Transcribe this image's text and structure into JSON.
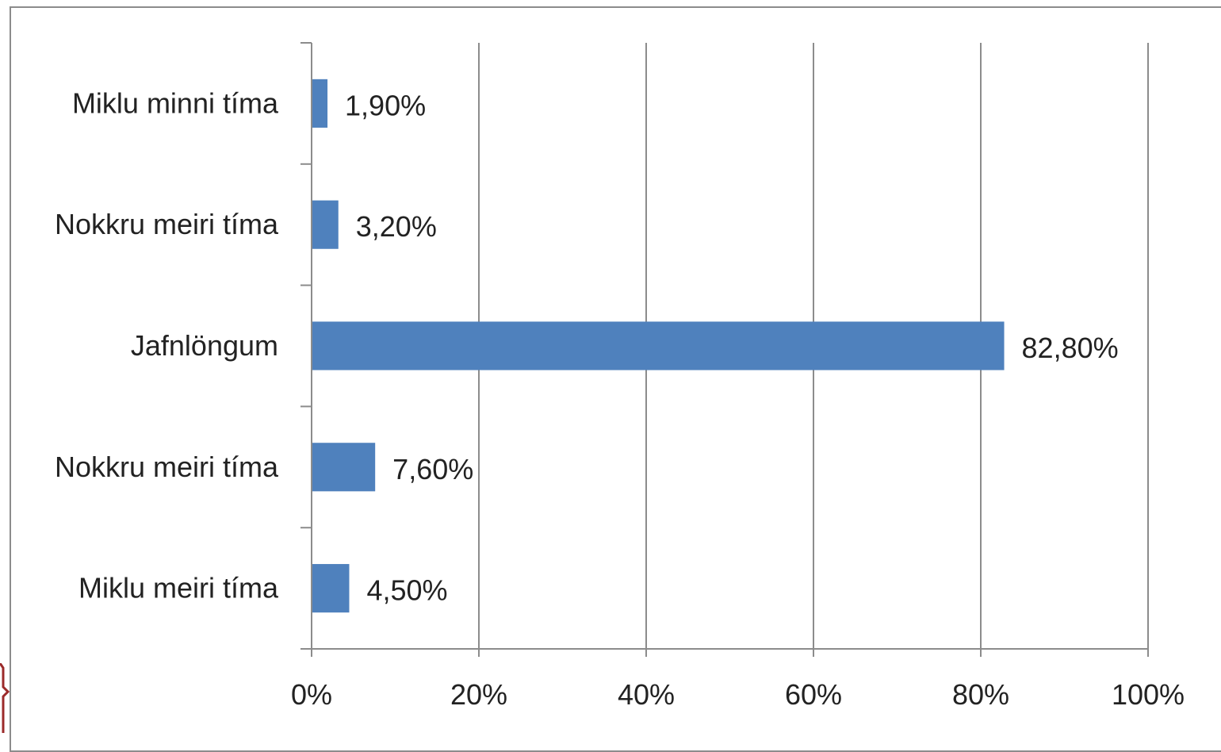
{
  "chart_data": {
    "type": "bar",
    "orientation": "horizontal",
    "categories": [
      "Miklu minni tíma",
      "Nokkru meiri tíma",
      "Jafnlöngum",
      "Nokkru meiri tíma",
      "Miklu meiri tíma"
    ],
    "values": [
      1.9,
      3.2,
      82.8,
      7.6,
      4.5
    ],
    "value_labels": [
      "1,90%",
      "3,20%",
      "82,80%",
      "7,60%",
      "4,50%"
    ],
    "xlim": [
      0,
      100
    ],
    "xticks": [
      0,
      20,
      40,
      60,
      80,
      100
    ],
    "xtick_labels": [
      "0%",
      "20%",
      "40%",
      "60%",
      "80%",
      "100%"
    ],
    "title": "",
    "xlabel": "",
    "ylabel": "",
    "grid": "vertical",
    "legend": "none",
    "colors": {
      "bar": "#4f81bd",
      "grid": "#8c8c8c",
      "axis": "#8c8c8c"
    }
  }
}
